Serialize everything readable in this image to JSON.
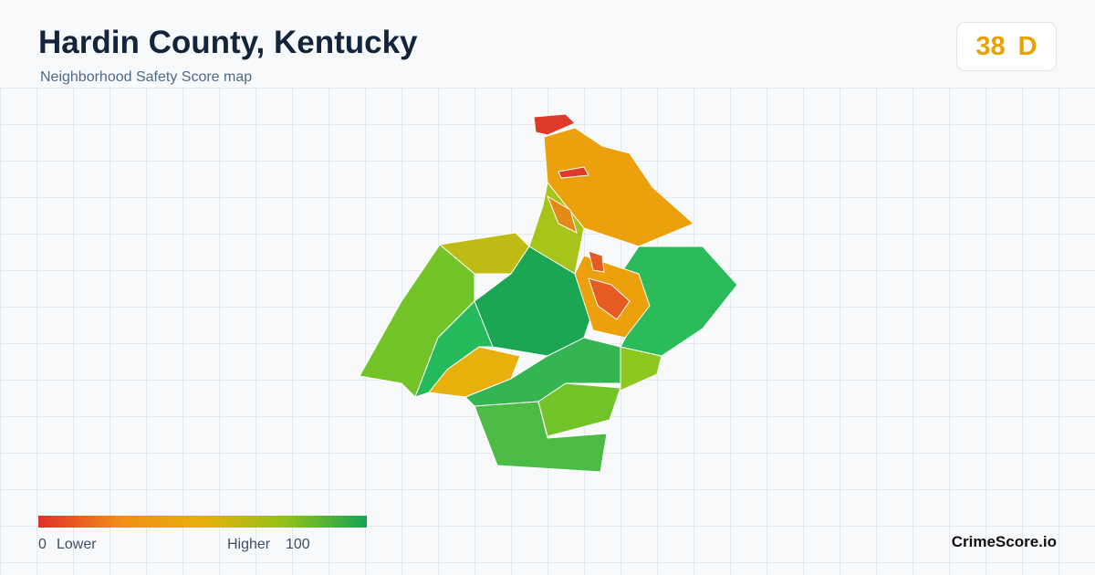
{
  "header": {
    "title": "Hardin County, Kentucky",
    "subtitle": "Neighborhood Safety Score map"
  },
  "score": {
    "value": 38,
    "grade": "D"
  },
  "legend": {
    "min": 0,
    "min_label": "Lower",
    "max_label": "Higher",
    "max": 100
  },
  "brand": "CrimeScore.io"
}
